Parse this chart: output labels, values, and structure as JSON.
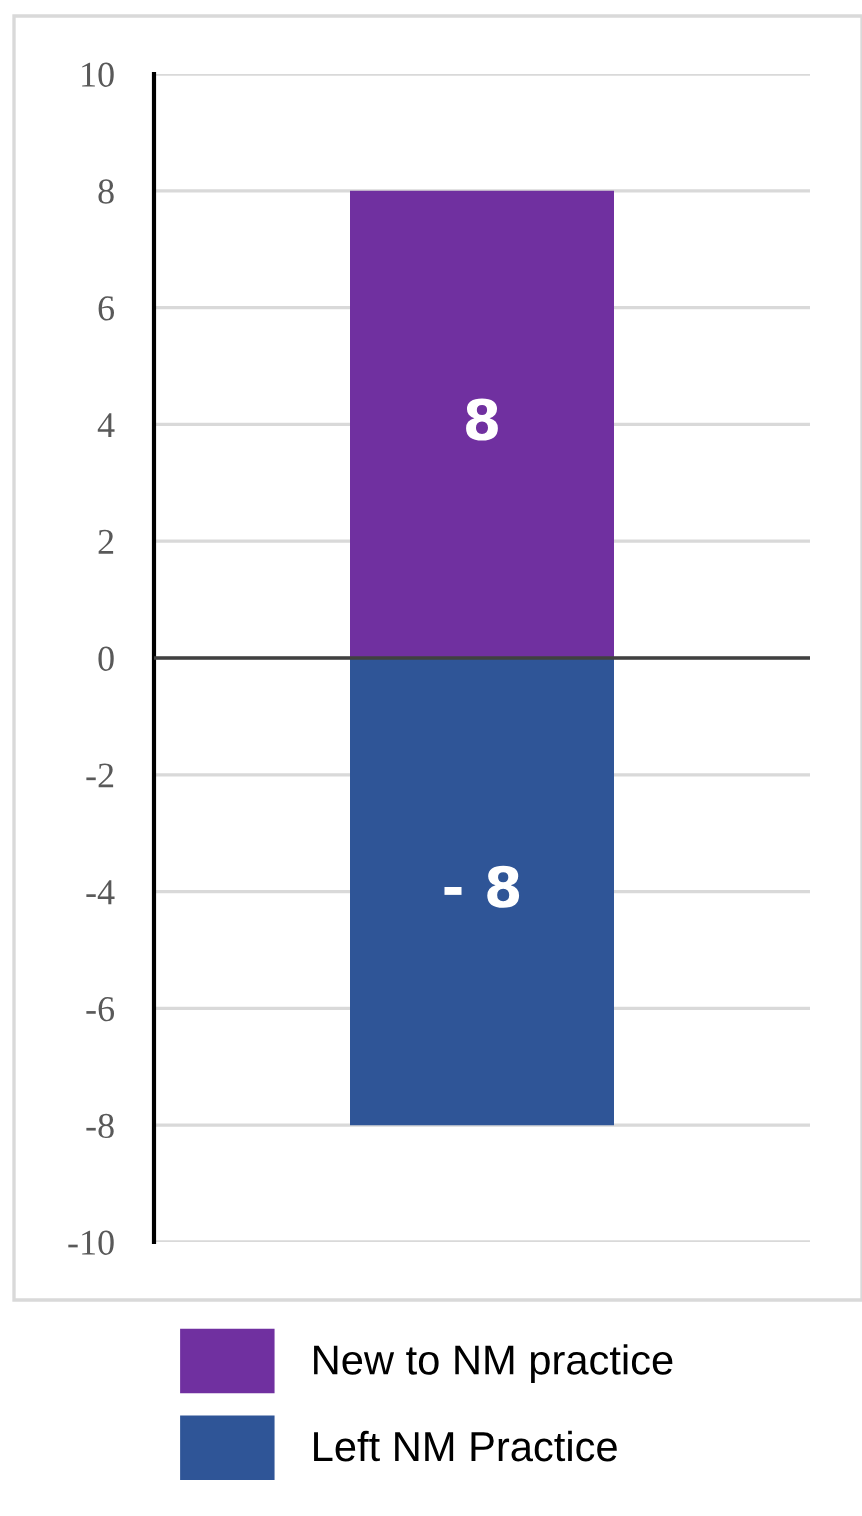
{
  "chart_data": {
    "type": "bar",
    "stacked": true,
    "categories": [
      null
    ],
    "series": [
      {
        "name": "New to NM practice",
        "color": "#7030a0",
        "values": [
          8
        ],
        "value_labels": [
          "8"
        ]
      },
      {
        "name": "Left NM Practice",
        "color": "#2f5597",
        "values": [
          -8
        ],
        "value_labels": [
          "- 8"
        ]
      }
    ],
    "ylim": [
      -10,
      10
    ],
    "yticks": [
      -10,
      -8,
      -6,
      -4,
      -2,
      0,
      2,
      4,
      6,
      8,
      10
    ],
    "grid": "y",
    "legend": "bottom"
  }
}
